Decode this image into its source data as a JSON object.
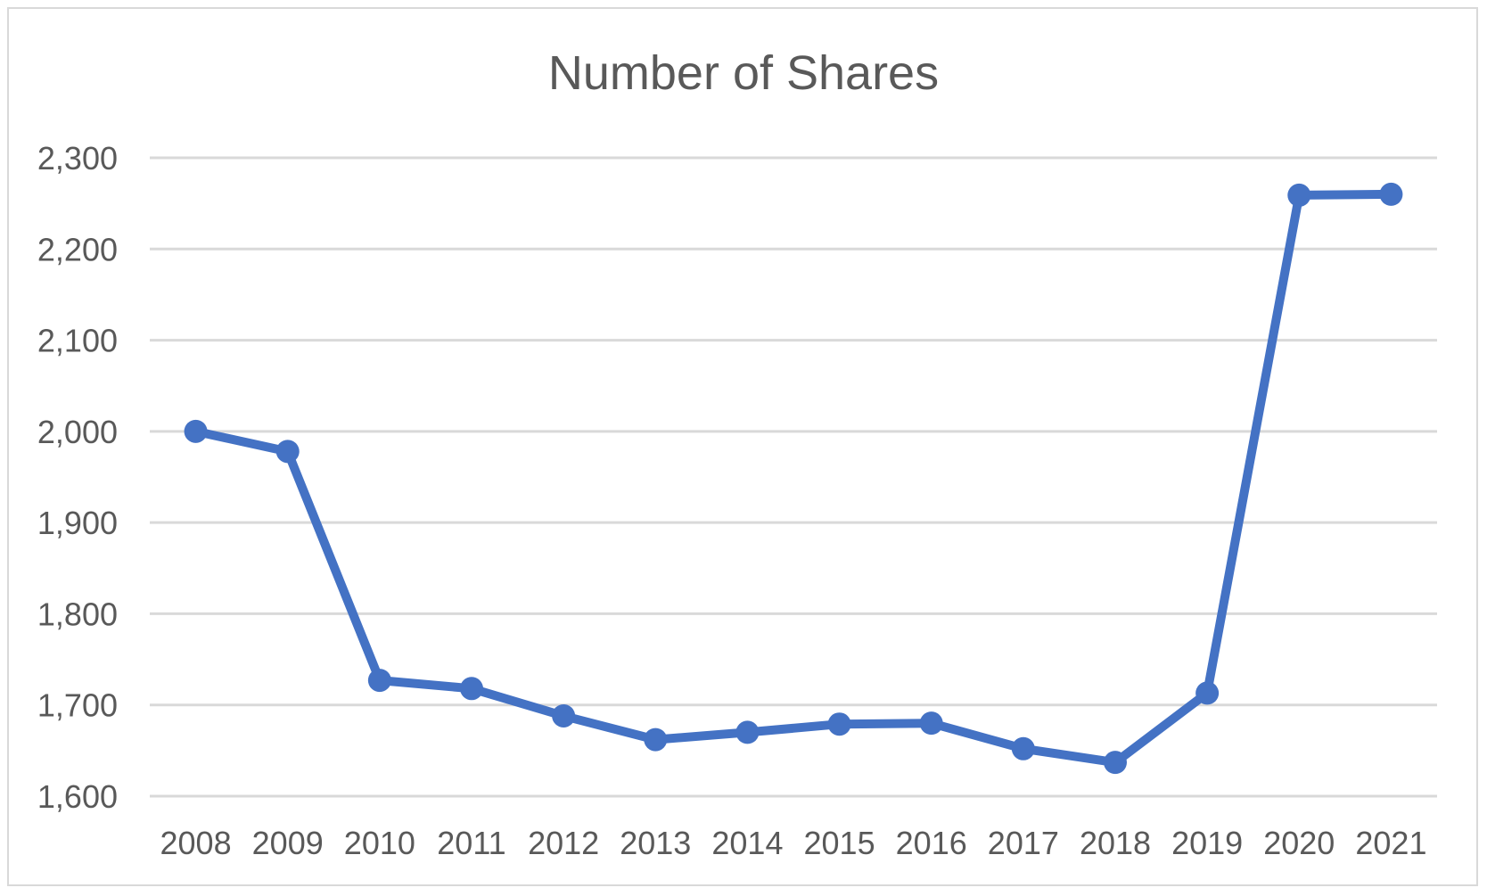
{
  "chart_data": {
    "type": "line",
    "title": "Number of Shares",
    "xlabel": "",
    "ylabel": "",
    "x": [
      "2008",
      "2009",
      "2010",
      "2011",
      "2012",
      "2013",
      "2014",
      "2015",
      "2016",
      "2017",
      "2018",
      "2019",
      "2020",
      "2021"
    ],
    "series": [
      {
        "values": [
          2000,
          1978,
          1727,
          1718,
          1688,
          1662,
          1670,
          1679,
          1680,
          1652,
          1637,
          1713,
          2259,
          2260
        ]
      }
    ],
    "ylim": [
      1600,
      2300
    ],
    "yticks": [
      "1,600",
      "1,700",
      "1,800",
      "1,900",
      "2,000",
      "2,100",
      "2,200",
      "2,300"
    ],
    "grid": true,
    "legend": "none",
    "colors": {
      "series": "#4472c4",
      "grid": "#d9d9d9",
      "text": "#595959"
    }
  }
}
